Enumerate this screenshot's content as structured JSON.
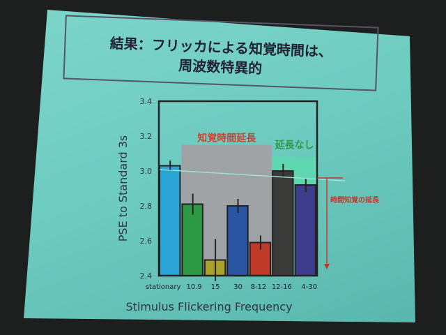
{
  "slide": {
    "title_line1": "結果：フリッカによる知覚時間は、",
    "title_line2": "周波数特異的",
    "annotation_arrow": "時間知覚の延長"
  },
  "chart_data": {
    "type": "bar",
    "title": "",
    "xlabel": "Stimulus Flickering Frequency",
    "ylabel": "PSE to Standard 3s",
    "ylim": [
      2.4,
      3.4
    ],
    "yticks": [
      "2.4",
      "2.6",
      "2.8",
      "3.0",
      "3.2",
      "3.4"
    ],
    "categories": [
      "stationary",
      "10.9",
      "15",
      "30",
      "8-12",
      "12-16",
      "4-30"
    ],
    "values": [
      3.03,
      2.81,
      2.49,
      2.8,
      2.59,
      3.0,
      2.92
    ],
    "errors": [
      0.03,
      0.06,
      0.12,
      0.04,
      0.04,
      0.04,
      0.04
    ],
    "colors": [
      "#2aa3d6",
      "#2e9a45",
      "#a8a22a",
      "#2a55a3",
      "#c03a2a",
      "#3a3a38",
      "#3d3d8c"
    ],
    "reference_line": 3.0,
    "regions": [
      {
        "label": "知覚時間延長",
        "from": 1,
        "to": 4,
        "color": "#a0a3a6",
        "label_color": "#d0402e"
      },
      {
        "label": "延長なし",
        "from": 5,
        "to": 6,
        "color": "#5fd6b0",
        "label_color": "#2e9a45"
      }
    ],
    "grid": false
  }
}
